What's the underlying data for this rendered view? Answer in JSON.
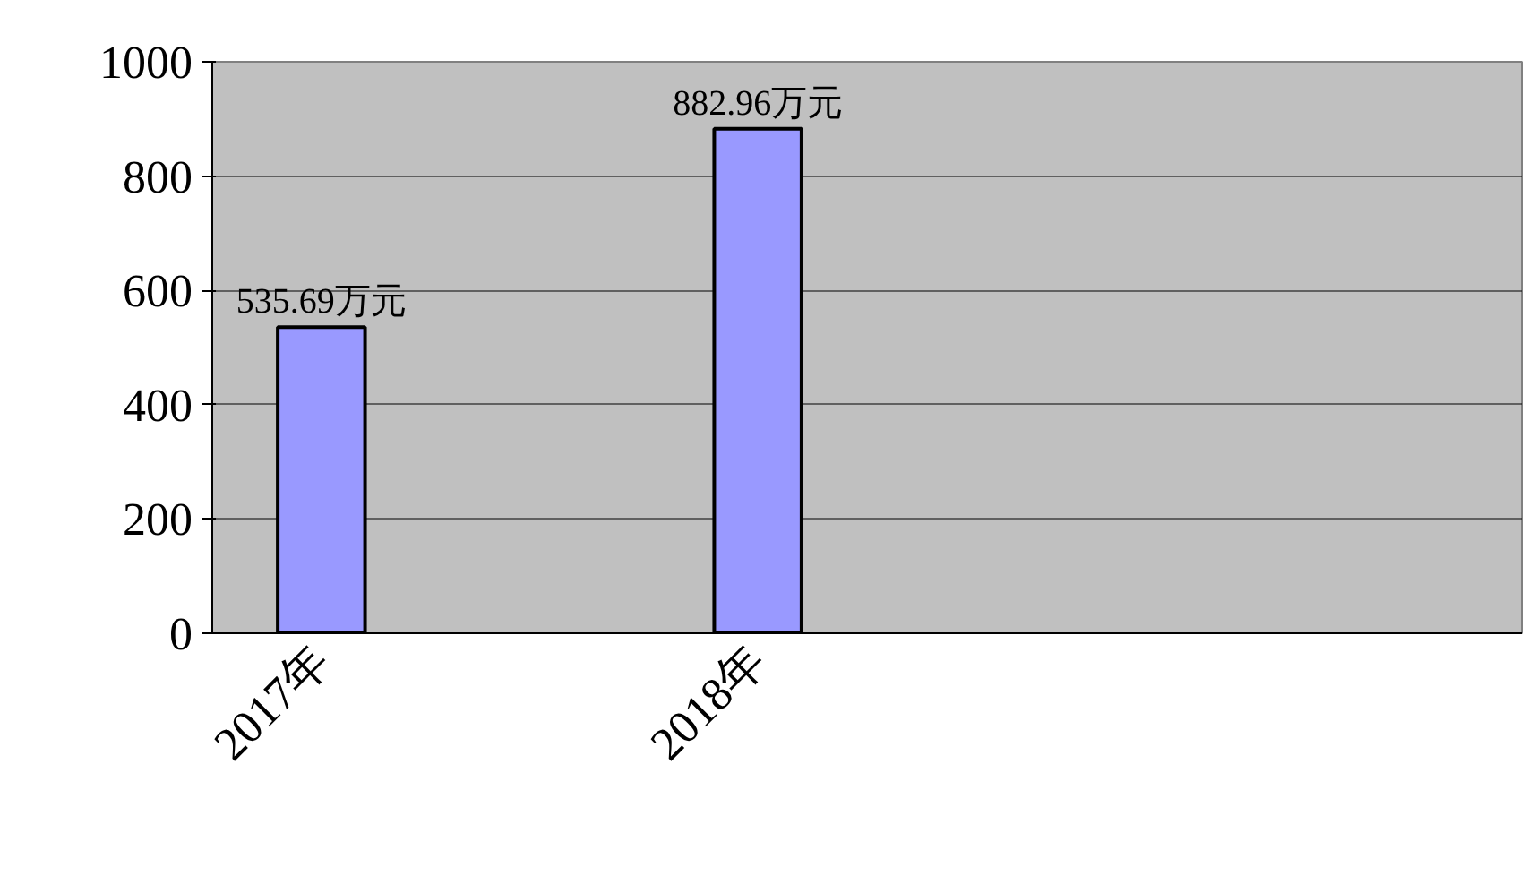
{
  "chart_data": {
    "type": "bar",
    "categories": [
      "2017年",
      null,
      "2018年",
      null,
      null,
      null
    ],
    "values": [
      535.69,
      null,
      882.96,
      null,
      null,
      null
    ],
    "value_labels": [
      "535.69万元",
      null,
      "882.96万元",
      null,
      null,
      null
    ],
    "color": "#9999ff",
    "ylim": [
      0,
      1000
    ],
    "yticks": [
      0,
      200,
      400,
      600,
      800,
      1000
    ],
    "grid": "y"
  }
}
